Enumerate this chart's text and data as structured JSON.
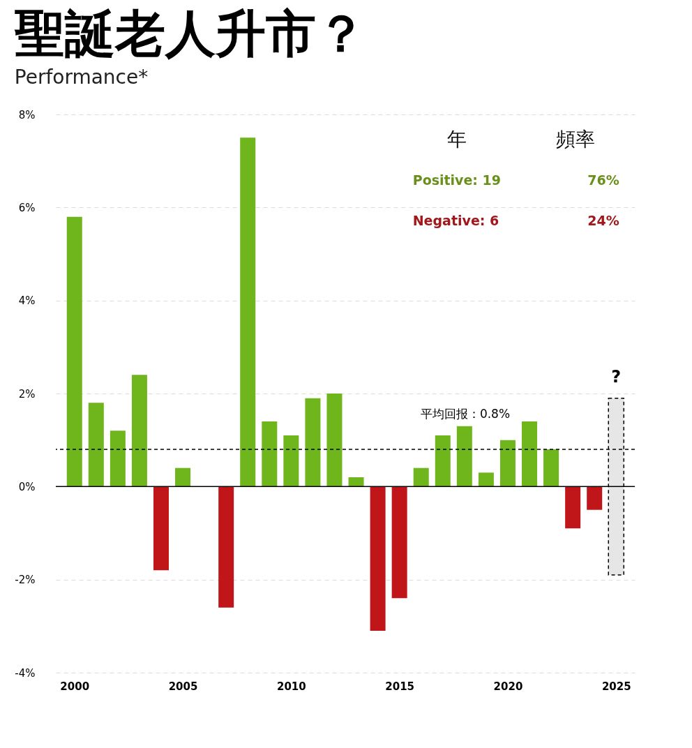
{
  "chart_data": {
    "type": "bar",
    "title": "聖誕老人升市？",
    "subtitle": "Performance*",
    "x": [
      2000,
      2001,
      2002,
      2003,
      2004,
      2005,
      2006,
      2007,
      2008,
      2009,
      2010,
      2011,
      2012,
      2013,
      2014,
      2015,
      2016,
      2017,
      2018,
      2019,
      2020,
      2021,
      2022,
      2023,
      2024,
      2025
    ],
    "series": [
      {
        "values": [
          5.8,
          1.8,
          1.2,
          2.4,
          -1.8,
          0.4,
          0,
          -2.6,
          7.5,
          1.4,
          1.1,
          1.9,
          2.0,
          0.2,
          -3.1,
          -2.4,
          0.4,
          1.1,
          1.3,
          0.3,
          1.0,
          1.4,
          0.8,
          -0.9,
          -0.5,
          null
        ],
        "colors": [
          "#6fb51c",
          "#6fb51c",
          "#6fb51c",
          "#6fb51c",
          "#c0161a",
          "#6fb51c",
          "#6fb51c",
          "#c0161a",
          "#6fb51c",
          "#6fb51c",
          "#6fb51c",
          "#6fb51c",
          "#6fb51c",
          "#6fb51c",
          "#c0161a",
          "#c0161a",
          "#6fb51c",
          "#6fb51c",
          "#6fb51c",
          "#6fb51c",
          "#6fb51c",
          "#6fb51c",
          "#6fb51c",
          "#c0161a",
          "#c0161a",
          "#6fb51c"
        ]
      },
      {
        "type": "bar",
        "color": "#e6e6e6",
        "line_style": "dashed",
        "base": [
          null,
          null,
          null,
          null,
          null,
          null,
          null,
          null,
          null,
          null,
          null,
          null,
          null,
          null,
          null,
          null,
          null,
          null,
          null,
          null,
          null,
          null,
          null,
          null,
          null,
          -1.9
        ],
        "values": [
          null,
          null,
          null,
          null,
          null,
          null,
          null,
          null,
          null,
          null,
          null,
          null,
          null,
          null,
          null,
          null,
          null,
          null,
          null,
          null,
          null,
          null,
          null,
          null,
          null,
          3.8
        ]
      }
    ],
    "xlim": [
      1999.3,
      2025.7
    ],
    "xticks": [
      2000,
      2005,
      2010,
      2015,
      2020,
      2025
    ],
    "ylim": [
      -4,
      8
    ],
    "yticks": [
      {
        "value": -4,
        "label": "-4%"
      },
      {
        "value": -2,
        "label": "-2%"
      },
      {
        "value": 0,
        "label": "0%"
      },
      {
        "value": 2,
        "label": "2%"
      },
      {
        "value": 4,
        "label": "4%"
      },
      {
        "value": 6,
        "label": "6%"
      },
      {
        "value": 8,
        "label": "8%"
      }
    ],
    "grid": "y",
    "ref_lines": [
      {
        "axis": "y",
        "value": 0.8,
        "label": "平均回报：0.8%",
        "line_style": "dashed",
        "color": "#000000"
      }
    ],
    "annotations": [
      "?",
      "年",
      "頻率",
      "Positive: 19",
      "76%",
      "Negative: 6",
      "24%"
    ]
  }
}
